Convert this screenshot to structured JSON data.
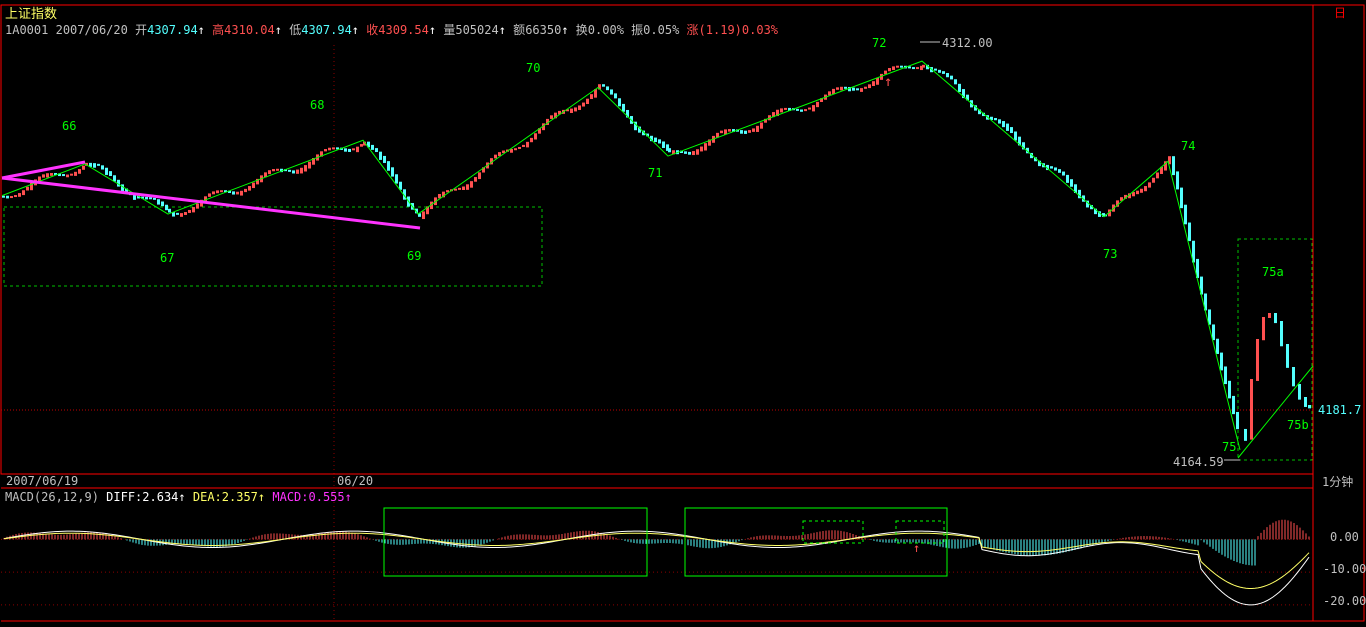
{
  "header": {
    "index_name": "上证指数",
    "code": "1A0001",
    "date": "2007/06/20",
    "open_label": "开",
    "open_value": "4307.94",
    "high_label": "高",
    "high_value": "4310.04",
    "low_label": "低",
    "low_value": "4307.94",
    "close_label": "收",
    "close_value": "4309.54",
    "volume_label": "量",
    "volume_value": "505024",
    "amount_label": "额",
    "amount_value": "66350",
    "turnover_label": "换",
    "turnover_value": "0.00%",
    "amplitude_label": "振",
    "amplitude_value": "0.05%",
    "change_label": "涨",
    "change_value": "(1.19)0.03%",
    "corner_box": "日"
  },
  "axis": {
    "date_left": "2007/06/19",
    "date_mid": "06/20",
    "period": "1分钟",
    "current_price": "4181.7",
    "max_price": "4312.00",
    "min_price": "4164.59"
  },
  "macd": {
    "header_name": "MACD(26,12,9)",
    "diff_label": "DIFF:",
    "diff_value": "2.634",
    "dea_label": "DEA:",
    "dea_value": "2.357",
    "macd_label": "MACD:",
    "macd_value": "0.555",
    "ticks": [
      "0.00",
      "-10.00",
      "-20.00"
    ]
  },
  "colors": {
    "up": "#ff5050",
    "down": "#54ffff",
    "wave": "#00ff00",
    "trend": "#ff33ff",
    "frame": "#ff0000",
    "grid": "#8b0000"
  },
  "chart_data": {
    "type": "candlestick",
    "price_range": [
      4160,
      4320
    ],
    "wave_labels": [
      {
        "label": "66",
        "price": 4280
      },
      {
        "label": "67",
        "price": 4253
      },
      {
        "label": "68",
        "price": 4289
      },
      {
        "label": "69",
        "price": 4254
      },
      {
        "label": "70",
        "price": 4306
      },
      {
        "label": "71",
        "price": 4276
      },
      {
        "label": "72",
        "price": 4311
      },
      {
        "label": "73",
        "price": 4244
      },
      {
        "label": "74",
        "price": 4276
      },
      {
        "label": "75a",
        "price": 4228
      },
      {
        "label": "75b",
        "price": 4180
      },
      {
        "label": "75",
        "price": 4168
      }
    ],
    "zigzag": [
      {
        "time": "2007/06/19 start",
        "price": 4261
      },
      {
        "time": "w66",
        "price": 4273
      },
      {
        "time": "w67",
        "price": 4254
      },
      {
        "time": "w68",
        "price": 4282
      },
      {
        "time": "w69",
        "price": 4254
      },
      {
        "time": "w70",
        "price": 4302
      },
      {
        "time": "w71",
        "price": 4276
      },
      {
        "time": "w72",
        "price": 4312
      },
      {
        "time": "w73",
        "price": 4253
      },
      {
        "time": "w74",
        "price": 4274
      },
      {
        "time": "w75",
        "price": 4164.59
      }
    ],
    "macd_range": [
      -24,
      12
    ]
  }
}
